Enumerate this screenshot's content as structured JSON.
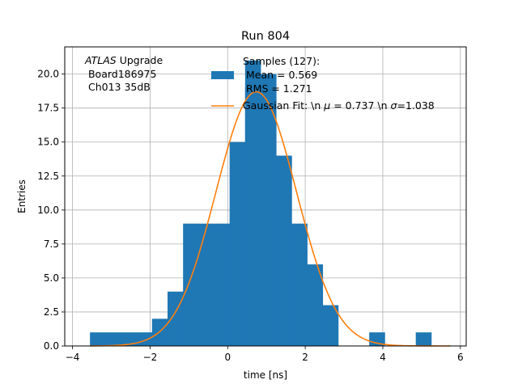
{
  "chart_data": {
    "type": "bar",
    "title": "Run 804",
    "xlabel": "time [ns]",
    "ylabel": "Entries",
    "xlim": [
      -4.2,
      6.15
    ],
    "ylim": [
      0,
      22
    ],
    "grid": true,
    "xticks": [
      -4,
      -2,
      0,
      2,
      4,
      6
    ],
    "xtick_labels": [
      "−4",
      "−2",
      "0",
      "2",
      "4",
      "6"
    ],
    "yticks": [
      0,
      2.5,
      5,
      7.5,
      10,
      12.5,
      15,
      17.5,
      20
    ],
    "ytick_labels": [
      "0.0",
      "2.5",
      "5.0",
      "7.5",
      "10.0",
      "12.5",
      "15.0",
      "17.5",
      "20.0"
    ],
    "annotation": {
      "line1_italic": "ATLAS",
      "line1_rest": " Upgrade",
      "line2": " Board186975",
      "line3": " Ch013 35dB"
    },
    "bars": [
      {
        "x0": -3.55,
        "x1": -1.95,
        "y": 1
      },
      {
        "x0": -1.95,
        "x1": -1.55,
        "y": 2
      },
      {
        "x0": -1.55,
        "x1": -1.15,
        "y": 4
      },
      {
        "x0": -1.15,
        "x1": 0.05,
        "y": 9
      },
      {
        "x0": 0.05,
        "x1": 0.45,
        "y": 15
      },
      {
        "x0": 0.45,
        "x1": 0.85,
        "y": 19
      },
      {
        "x0": 0.85,
        "x1": 1.25,
        "y": 20
      },
      {
        "x0": 1.25,
        "x1": 1.65,
        "y": 14
      },
      {
        "x0": 1.65,
        "x1": 2.05,
        "y": 9
      },
      {
        "x0": 2.05,
        "x1": 2.45,
        "y": 6
      },
      {
        "x0": 2.45,
        "x1": 2.85,
        "y": 3
      },
      {
        "x0": 3.65,
        "x1": 4.05,
        "y": 1
      },
      {
        "x0": 4.85,
        "x1": 5.25,
        "y": 1
      }
    ],
    "bar_extra": [
      {
        "x0": 0.45,
        "x1": 0.85,
        "y": 21
      }
    ],
    "gaussian": {
      "amplitude": 18.7,
      "mu": 0.737,
      "sigma": 1.038,
      "x_start": -3.55,
      "x_end": 5.75
    },
    "legend": {
      "placement": "upper-right",
      "hist_line1": "Samples (127):",
      "hist_line2": " Mean = 0.569",
      "hist_line3": " RMS = 1.271",
      "fit_label_prefix": "Gaussian Fit: \\n ",
      "fit_mu_symbol": "μ",
      "fit_mu_value": " = 0.737 \\n ",
      "fit_sigma_symbol": "σ",
      "fit_sigma_value": "=1.038"
    },
    "colors": {
      "hist": "#1f77b4",
      "fit": "#ff7f0e",
      "grid": "#b0b0b0"
    }
  }
}
